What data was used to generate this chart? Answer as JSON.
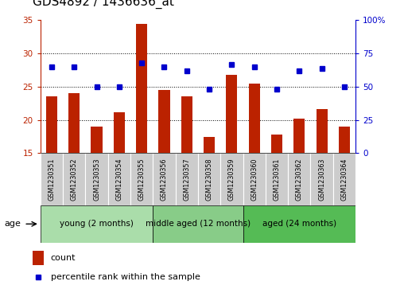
{
  "title": "GDS4892 / 1436636_at",
  "samples": [
    "GSM1230351",
    "GSM1230352",
    "GSM1230353",
    "GSM1230354",
    "GSM1230355",
    "GSM1230356",
    "GSM1230357",
    "GSM1230358",
    "GSM1230359",
    "GSM1230360",
    "GSM1230361",
    "GSM1230362",
    "GSM1230363",
    "GSM1230364"
  ],
  "counts": [
    23.5,
    24.0,
    19.0,
    21.2,
    34.5,
    24.5,
    23.5,
    17.5,
    26.8,
    25.5,
    17.8,
    20.2,
    21.6,
    19.0
  ],
  "percentiles": [
    65,
    65,
    50,
    50,
    68,
    65,
    62,
    48,
    67,
    65,
    48,
    62,
    64,
    50
  ],
  "ylim_left": [
    15,
    35
  ],
  "ylim_right": [
    0,
    100
  ],
  "yticks_left": [
    15,
    20,
    25,
    30,
    35
  ],
  "yticks_right": [
    0,
    25,
    50,
    75,
    100
  ],
  "ytick_labels_right": [
    "0",
    "25",
    "50",
    "75",
    "100%"
  ],
  "bar_color": "#bb2200",
  "dot_color": "#0000cc",
  "bar_bottom": 15,
  "groups": [
    {
      "label": "young (2 months)",
      "start": 0,
      "end": 5,
      "color": "#aaddaa"
    },
    {
      "label": "middle aged (12 months)",
      "start": 5,
      "end": 9,
      "color": "#88cc88"
    },
    {
      "label": "aged (24 months)",
      "start": 9,
      "end": 14,
      "color": "#55bb55"
    }
  ],
  "age_label": "age",
  "legend_count_label": "count",
  "legend_pct_label": "percentile rank within the sample",
  "bar_width": 0.5,
  "grid_color": "#000000",
  "title_fontsize": 11,
  "ytick_fontsize": 7.5,
  "xtick_fontsize": 5.8,
  "group_fontsize": 7.5,
  "legend_fontsize": 8
}
